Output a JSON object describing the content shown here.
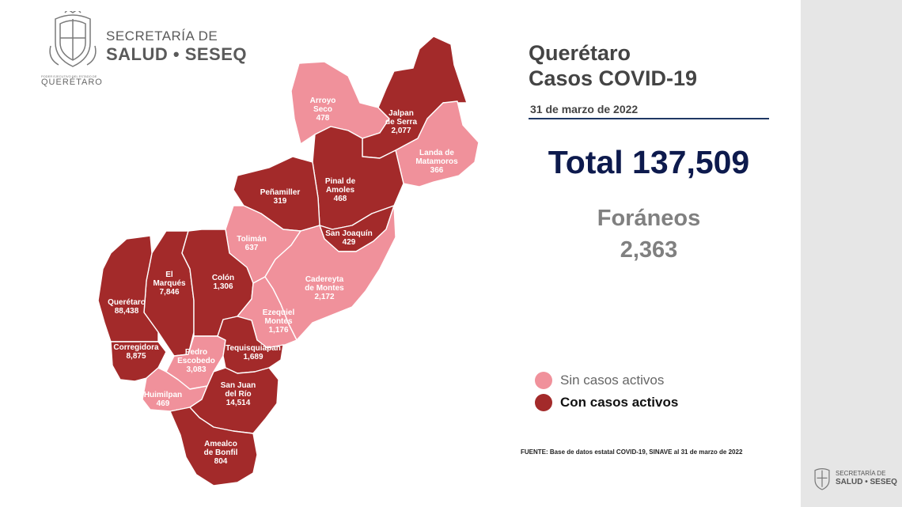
{
  "header": {
    "org_line1": "SECRETARÍA DE",
    "org_line2": "SALUD • SESEQ",
    "small_text": "PODER EJECUTIVO DEL ESTADO DE",
    "state_text": "QUERÉTARO"
  },
  "info": {
    "title_line1": "Querétaro",
    "title_line2": "Casos COVID-19",
    "date": "31 de marzo de 2022",
    "total": "Total 137,509",
    "foraneos_label": "Foráneos",
    "foraneos_value": "2,363"
  },
  "legend": {
    "inactive_label": "Sin casos activos",
    "active_label": "Con casos activos"
  },
  "colors": {
    "inactive": "#f0919b",
    "active": "#a32a2a",
    "border": "#ffffff",
    "title_rule": "#1f3864",
    "total": "#0d1a4d"
  },
  "source": "FUENTE: Base de datos estatal  COVID-19,  SINAVE  al 31 de marzo de 2022",
  "footer_logo": {
    "line1": "SECRETARÍA DE",
    "line2": "SALUD • SESEQ"
  },
  "municipalities": [
    {
      "id": "arroyo-seco",
      "name_lines": [
        "Arroyo",
        "Seco"
      ],
      "cases": "478",
      "active": false
    },
    {
      "id": "jalpan-de-serra",
      "name_lines": [
        "Jalpan",
        "de Serra"
      ],
      "cases": "2,077",
      "active": true
    },
    {
      "id": "landa-de-matamoros",
      "name_lines": [
        "Landa de",
        "Matamoros"
      ],
      "cases": "366",
      "active": false
    },
    {
      "id": "pinal-de-amoles",
      "name_lines": [
        "Pinal de",
        "Amoles"
      ],
      "cases": "468",
      "active": true
    },
    {
      "id": "penamiller",
      "name_lines": [
        "Peñamiller"
      ],
      "cases": "319",
      "active": true
    },
    {
      "id": "san-joaquin",
      "name_lines": [
        "San Joaquín"
      ],
      "cases": "429",
      "active": true
    },
    {
      "id": "toliman",
      "name_lines": [
        "Tolimán"
      ],
      "cases": "637",
      "active": false
    },
    {
      "id": "cadereyta-de-montes",
      "name_lines": [
        "Cadereyta",
        "de Montes"
      ],
      "cases": "2,172",
      "active": false
    },
    {
      "id": "el-marques",
      "name_lines": [
        "El",
        "Marqués"
      ],
      "cases": "7,846",
      "active": true
    },
    {
      "id": "colon",
      "name_lines": [
        "Colón"
      ],
      "cases": "1,306",
      "active": true
    },
    {
      "id": "queretaro",
      "name_lines": [
        "Querétaro"
      ],
      "cases": "88,438",
      "active": true
    },
    {
      "id": "ezequiel-montes",
      "name_lines": [
        "Ezequiel",
        "Montes"
      ],
      "cases": "1,176",
      "active": false
    },
    {
      "id": "corregidora",
      "name_lines": [
        "Corregidora"
      ],
      "cases": "8,875",
      "active": true
    },
    {
      "id": "pedro-escobedo",
      "name_lines": [
        "Pedro",
        "Escobedo"
      ],
      "cases": "3,083",
      "active": false
    },
    {
      "id": "tequisquiapan",
      "name_lines": [
        "Tequisquiapan"
      ],
      "cases": "1,689",
      "active": true
    },
    {
      "id": "huimilpan",
      "name_lines": [
        "Huimilpan"
      ],
      "cases": "469",
      "active": false
    },
    {
      "id": "san-juan-del-rio",
      "name_lines": [
        "San Juan",
        "del Río"
      ],
      "cases": "14,514",
      "active": true
    },
    {
      "id": "amealco-de-bonfil",
      "name_lines": [
        "Amealco",
        "de Bonfil"
      ],
      "cases": "804",
      "active": true
    }
  ]
}
